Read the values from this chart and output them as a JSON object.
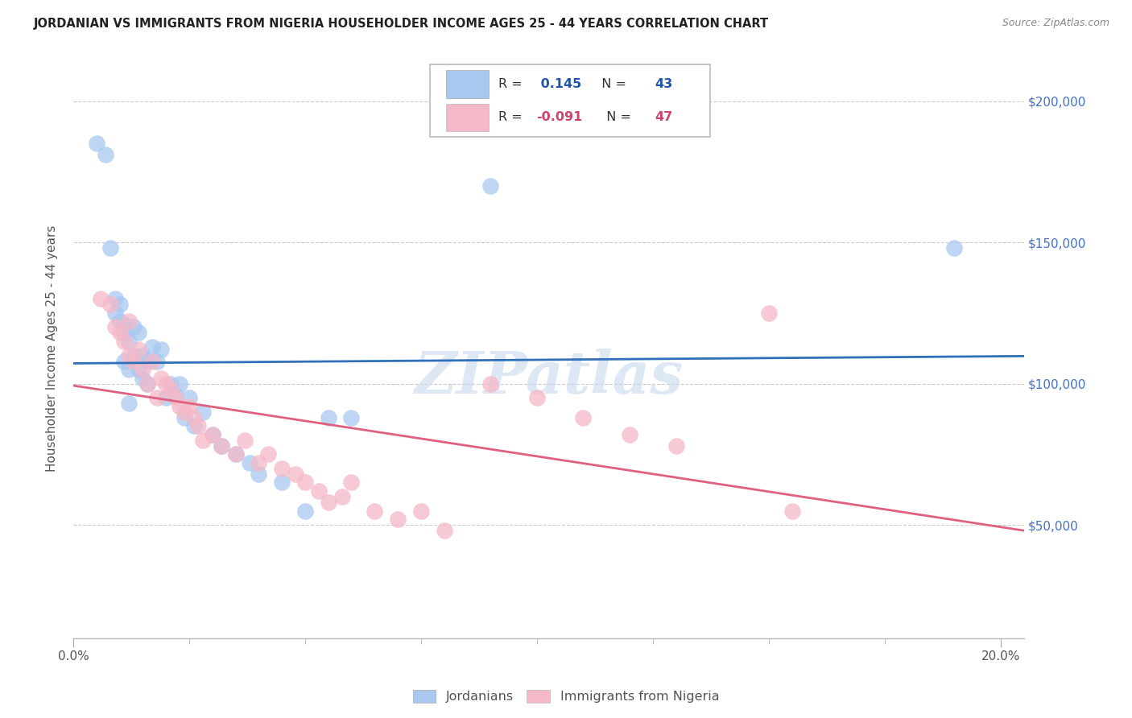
{
  "title": "JORDANIAN VS IMMIGRANTS FROM NIGERIA HOUSEHOLDER INCOME AGES 25 - 44 YEARS CORRELATION CHART",
  "source": "Source: ZipAtlas.com",
  "ylabel": "Householder Income Ages 25 - 44 years",
  "xlim": [
    0.0,
    0.205
  ],
  "ylim": [
    10000,
    215000
  ],
  "yticks": [
    50000,
    100000,
    150000,
    200000
  ],
  "ytick_labels": [
    "$50,000",
    "$100,000",
    "$150,000",
    "$200,000"
  ],
  "xtick_major": [
    0.0,
    0.2
  ],
  "xtick_major_labels": [
    "0.0%",
    "20.0%"
  ],
  "xtick_minor": [
    0.025,
    0.05,
    0.075,
    0.1,
    0.125,
    0.15,
    0.175
  ],
  "R_jordanian": 0.145,
  "N_jordanian": 43,
  "R_nigeria": -0.091,
  "N_nigeria": 47,
  "blue_scatter_color": "#A8C8F0",
  "pink_scatter_color": "#F5B8C8",
  "blue_line_color": "#3070B8",
  "pink_line_color": "#E06080",
  "watermark": "ZIPatlas",
  "jordanian_x": [
    0.005,
    0.007,
    0.008,
    0.009,
    0.009,
    0.01,
    0.01,
    0.011,
    0.011,
    0.011,
    0.012,
    0.012,
    0.013,
    0.013,
    0.014,
    0.014,
    0.015,
    0.015,
    0.016,
    0.016,
    0.017,
    0.018,
    0.019,
    0.02,
    0.021,
    0.022,
    0.023,
    0.024,
    0.025,
    0.026,
    0.028,
    0.03,
    0.032,
    0.035,
    0.038,
    0.04,
    0.045,
    0.05,
    0.055,
    0.06,
    0.09,
    0.012,
    0.19
  ],
  "jordanian_y": [
    185000,
    181000,
    148000,
    130000,
    125000,
    128000,
    122000,
    121000,
    118000,
    108000,
    115000,
    105000,
    120000,
    110000,
    118000,
    105000,
    110000,
    102000,
    108000,
    100000,
    113000,
    108000,
    112000,
    95000,
    100000,
    96000,
    100000,
    88000,
    95000,
    85000,
    90000,
    82000,
    78000,
    75000,
    72000,
    68000,
    65000,
    55000,
    88000,
    88000,
    170000,
    93000,
    148000
  ],
  "nigeria_x": [
    0.006,
    0.008,
    0.009,
    0.01,
    0.011,
    0.012,
    0.012,
    0.013,
    0.014,
    0.015,
    0.016,
    0.017,
    0.018,
    0.019,
    0.02,
    0.021,
    0.022,
    0.023,
    0.024,
    0.025,
    0.026,
    0.027,
    0.028,
    0.03,
    0.032,
    0.035,
    0.037,
    0.04,
    0.042,
    0.045,
    0.048,
    0.05,
    0.053,
    0.055,
    0.058,
    0.06,
    0.065,
    0.07,
    0.075,
    0.08,
    0.09,
    0.1,
    0.11,
    0.12,
    0.13,
    0.15,
    0.155
  ],
  "nigeria_y": [
    130000,
    128000,
    120000,
    118000,
    115000,
    110000,
    122000,
    108000,
    112000,
    105000,
    100000,
    108000,
    95000,
    102000,
    100000,
    98000,
    95000,
    92000,
    90000,
    92000,
    88000,
    85000,
    80000,
    82000,
    78000,
    75000,
    80000,
    72000,
    75000,
    70000,
    68000,
    65000,
    62000,
    58000,
    60000,
    65000,
    55000,
    52000,
    55000,
    48000,
    100000,
    95000,
    88000,
    82000,
    78000,
    125000,
    55000
  ]
}
